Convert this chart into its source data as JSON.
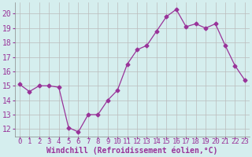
{
  "x": [
    0,
    1,
    2,
    3,
    4,
    5,
    6,
    7,
    8,
    9,
    10,
    11,
    12,
    13,
    14,
    15,
    16,
    17,
    18,
    19,
    20,
    21,
    22,
    23
  ],
  "y": [
    15.1,
    14.6,
    15.0,
    15.0,
    14.9,
    12.1,
    11.8,
    13.0,
    13.0,
    14.0,
    14.7,
    16.5,
    17.5,
    17.8,
    18.8,
    19.8,
    20.3,
    19.1,
    19.3,
    19.0,
    19.3,
    17.8,
    16.4,
    15.4
  ],
  "line_color": "#993399",
  "marker": "D",
  "marker_size": 2.5,
  "bg_color": "#d5eeee",
  "grid_color": "#bbbbbb",
  "xlabel": "Windchill (Refroidissement éolien,°C)",
  "xlabel_color": "#993399",
  "tick_color": "#993399",
  "ylim": [
    11.5,
    20.8
  ],
  "yticks": [
    12,
    13,
    14,
    15,
    16,
    17,
    18,
    19,
    20
  ],
  "xlim": [
    -0.5,
    23.5
  ],
  "xticks": [
    0,
    1,
    2,
    3,
    4,
    5,
    6,
    7,
    8,
    9,
    10,
    11,
    12,
    13,
    14,
    15,
    16,
    17,
    18,
    19,
    20,
    21,
    22,
    23
  ],
  "tick_fontsize": 6.5,
  "xlabel_fontsize": 7.0,
  "ytick_fontsize": 7.0
}
